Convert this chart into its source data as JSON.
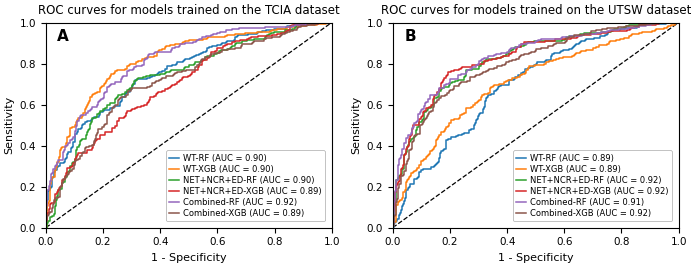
{
  "panel_A": {
    "title": "ROC curves for models trained on the TCIA dataset",
    "label": "A",
    "curves": [
      {
        "name": "WT-RF (AUC = 0.90)",
        "color": "#1f77b4",
        "auc": 0.9,
        "seed": 42
      },
      {
        "name": "WT-XGB (AUC = 0.90)",
        "color": "#ff7f0e",
        "auc": 0.9,
        "seed": 43
      },
      {
        "name": "NET+NCR+ED-RF (AUC = 0.90)",
        "color": "#2ca02c",
        "auc": 0.9,
        "seed": 44
      },
      {
        "name": "NET+NCR+ED-XGB (AUC = 0.89)",
        "color": "#d62728",
        "auc": 0.89,
        "seed": 45
      },
      {
        "name": "Combined-RF (AUC = 0.92)",
        "color": "#9467bd",
        "auc": 0.92,
        "seed": 46
      },
      {
        "name": "Combined-XGB (AUC = 0.89)",
        "color": "#8c564b",
        "auc": 0.89,
        "seed": 47
      }
    ]
  },
  "panel_B": {
    "title": "ROC curves for models trained on the UTSW dataset",
    "label": "B",
    "curves": [
      {
        "name": "WT-RF (AUC = 0.89)",
        "color": "#1f77b4",
        "auc": 0.89,
        "seed": 52
      },
      {
        "name": "WT-XGB (AUC = 0.89)",
        "color": "#ff7f0e",
        "auc": 0.89,
        "seed": 53
      },
      {
        "name": "NET+NCR+ED-RF (AUC = 0.92)",
        "color": "#2ca02c",
        "auc": 0.92,
        "seed": 54
      },
      {
        "name": "NET+NCR+ED-XGB (AUC = 0.92)",
        "color": "#d62728",
        "auc": 0.92,
        "seed": 55
      },
      {
        "name": "Combined-RF (AUC = 0.91)",
        "color": "#9467bd",
        "auc": 0.91,
        "seed": 56
      },
      {
        "name": "Combined-XGB (AUC = 0.92)",
        "color": "#8c564b",
        "auc": 0.92,
        "seed": 57
      }
    ]
  },
  "xlabel": "1 - Specificity",
  "ylabel": "Sensitivity",
  "linewidth": 1.1,
  "legend_fontsize": 6.0,
  "title_fontsize": 8.5,
  "label_fontsize": 11,
  "tick_fontsize": 7.5
}
